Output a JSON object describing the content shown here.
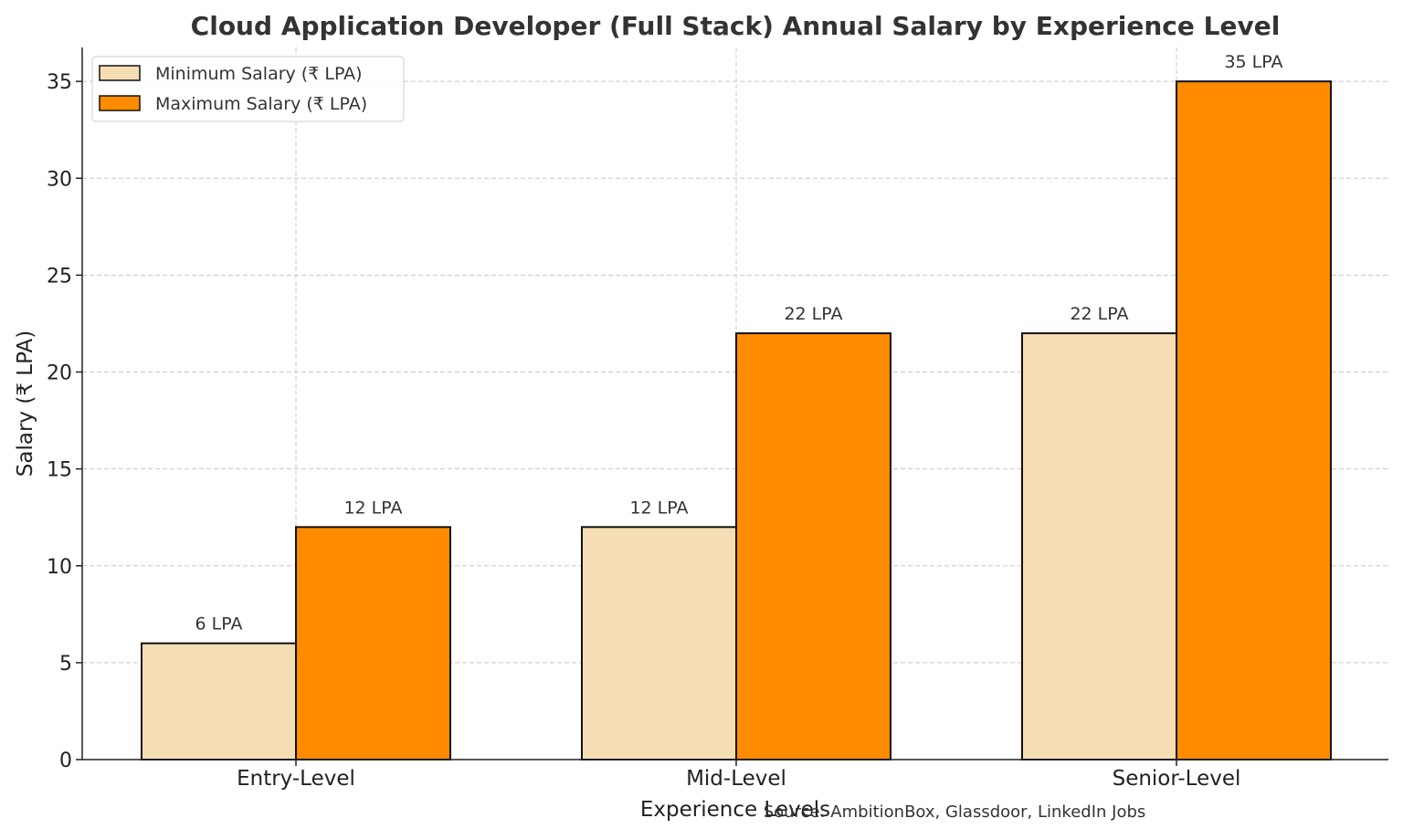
{
  "chart_data": {
    "type": "bar",
    "title": "Cloud Application Developer (Full Stack) Annual Salary by Experience Level",
    "xlabel": "Experience Levels",
    "ylabel": "Salary (₹ LPA)",
    "categories": [
      "Entry-Level",
      "Mid-Level",
      "Senior-Level"
    ],
    "series": [
      {
        "name": "Minimum Salary (₹ LPA)",
        "values": [
          6,
          12,
          22
        ],
        "labels": [
          "6 LPA",
          "12 LPA",
          "22 LPA"
        ],
        "color": "#F5DEB3"
      },
      {
        "name": "Maximum Salary (₹ LPA)",
        "values": [
          12,
          22,
          35
        ],
        "labels": [
          "12 LPA",
          "22 LPA",
          "35 LPA"
        ],
        "color": "#FF8C00"
      }
    ],
    "ylim": [
      0,
      36.75
    ],
    "yticks": [
      0,
      5,
      10,
      15,
      20,
      25,
      30,
      35
    ],
    "grid": true,
    "legend": "top-left",
    "annotation": "Source: AmbitionBox, Glassdoor, LinkedIn Jobs"
  }
}
